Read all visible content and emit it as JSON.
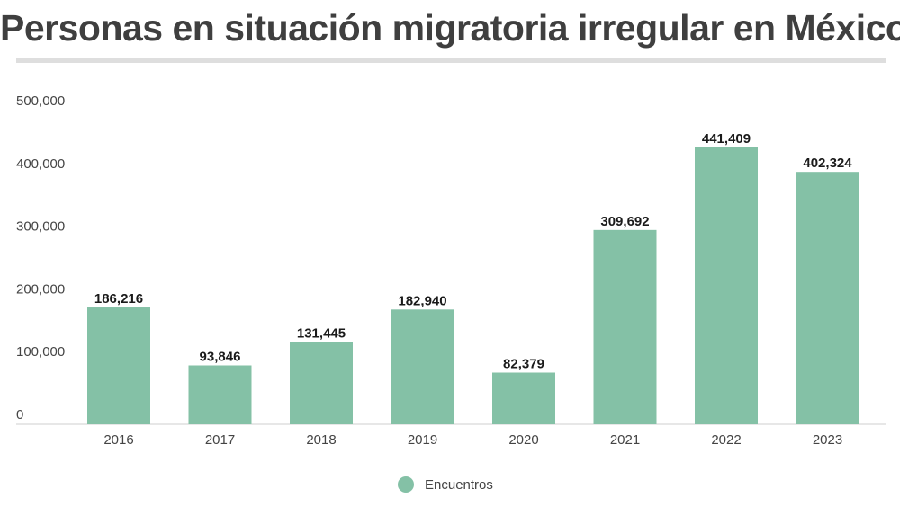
{
  "chart_data": {
    "type": "bar",
    "title": "Personas en situación migratoria irregular en México",
    "xlabel": "",
    "ylabel": "",
    "categories": [
      "2016",
      "2017",
      "2018",
      "2019",
      "2020",
      "2021",
      "2022",
      "2023"
    ],
    "series": [
      {
        "name": "Encuentros",
        "values": [
          186216,
          93846,
          131445,
          182940,
          82379,
          309692,
          441409,
          402324
        ],
        "labels": [
          "186,216",
          "93,846",
          "131,445",
          "182,940",
          "82,379",
          "309,692",
          "441,409",
          "402,324"
        ],
        "color": "#84c1a6"
      }
    ],
    "ylim": [
      0,
      500000
    ],
    "yticks": [
      0,
      100000,
      200000,
      300000,
      400000,
      500000
    ],
    "ytick_labels": [
      "0",
      "100,000",
      "200,000",
      "300,000",
      "400,000",
      "500,000"
    ],
    "grid": false,
    "legend": "bottom"
  }
}
